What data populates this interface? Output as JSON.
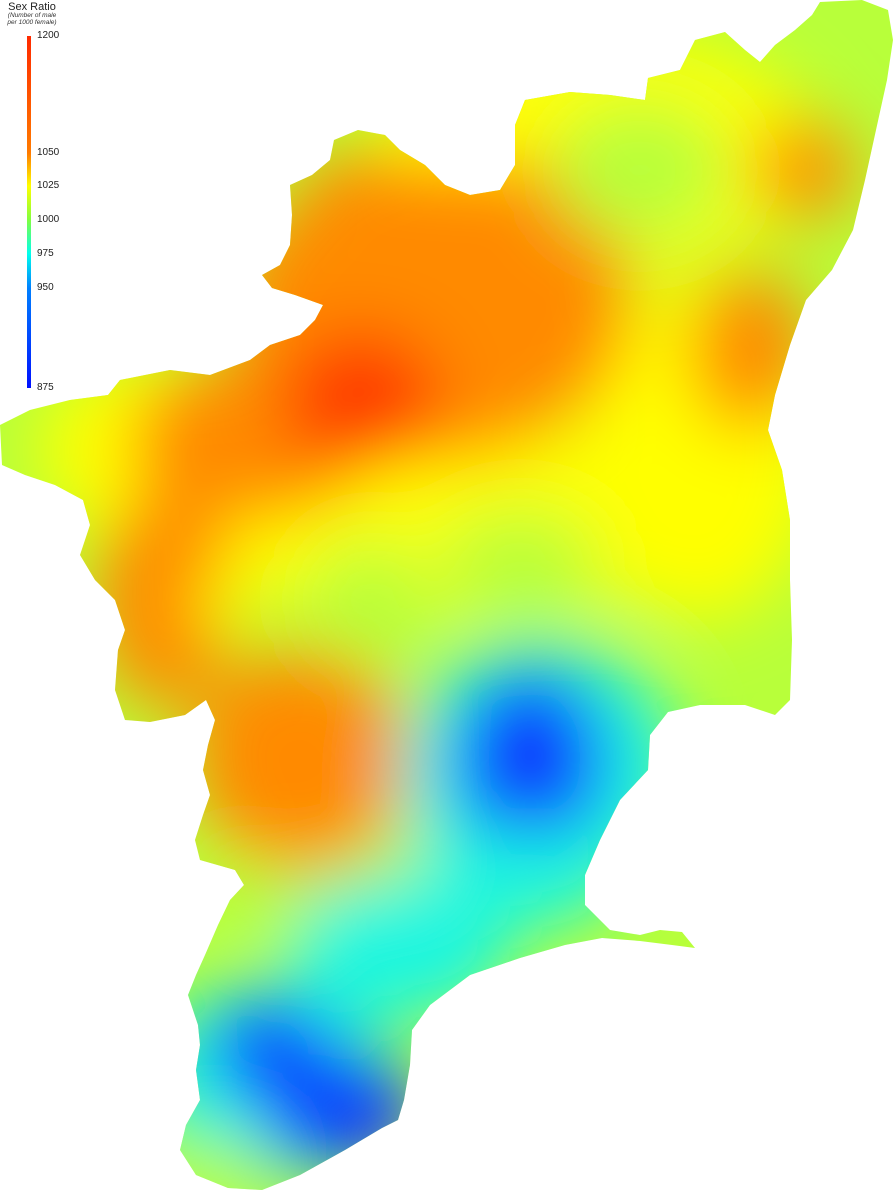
{
  "legend": {
    "title": "Sex Ratio",
    "subtitle_line1": "(Number of male",
    "subtitle_line2": "per 1000 female)",
    "ticks": [
      {
        "label": "1200",
        "value": 1200
      },
      {
        "label": "1050",
        "value": 1050
      },
      {
        "label": "1025",
        "value": 1025
      },
      {
        "label": "1000",
        "value": 1000
      },
      {
        "label": "975",
        "value": 975
      },
      {
        "label": "950",
        "value": 950
      },
      {
        "label": "875",
        "value": 875
      }
    ],
    "color_stops": [
      {
        "value": 1200,
        "color": "#ff2a00"
      },
      {
        "value": 1050,
        "color": "#ff7a00"
      },
      {
        "value": 1025,
        "color": "#ffff00"
      },
      {
        "value": 1000,
        "color": "#80ff40"
      },
      {
        "value": 975,
        "color": "#00ffee"
      },
      {
        "value": 950,
        "color": "#0080ff"
      },
      {
        "value": 875,
        "color": "#0010ff"
      }
    ]
  },
  "colors": {
    "low": "#0a3cff",
    "mid_low": "#1ef5e0",
    "mid": "#b8ff3a",
    "mid_high": "#ffff00",
    "high": "#ff8a00",
    "very_high": "#ff3c00"
  }
}
